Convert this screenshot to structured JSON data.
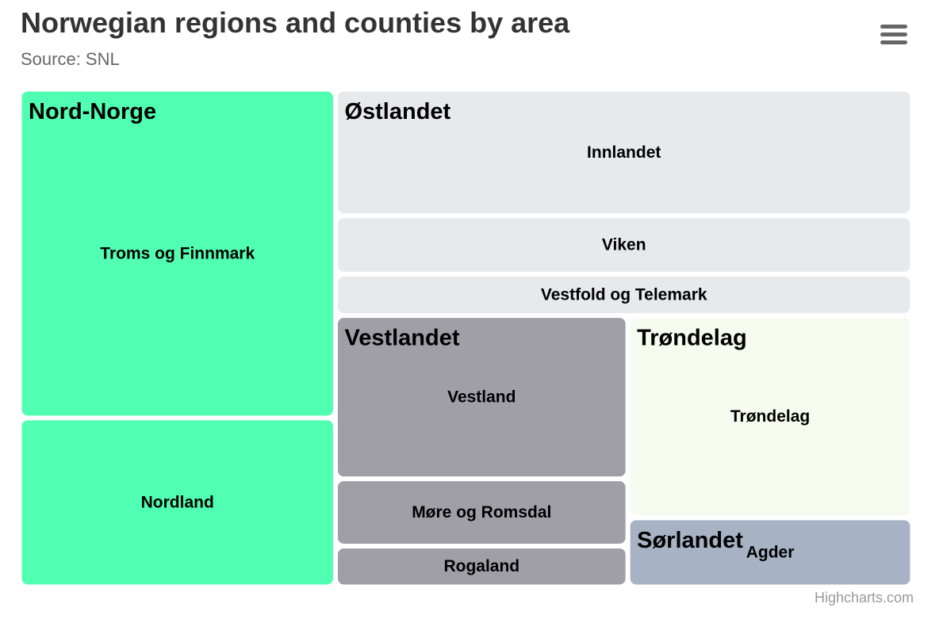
{
  "header": {
    "title": "Norwegian regions and counties by area",
    "subtitle": "Source: SNL"
  },
  "menu": {
    "icon": "hamburger-menu-icon"
  },
  "credits": {
    "label": "Highcharts.com"
  },
  "chart_data": {
    "type": "treemap",
    "title": "Norwegian regions and counties by area",
    "subtitle": "Source: SNL",
    "regions": [
      {
        "name": "Nord-Norge",
        "color": "#50FFB1",
        "counties": [
          {
            "name": "Troms og Finnmark",
            "value": 74000
          },
          {
            "name": "Nordland",
            "value": 38000
          }
        ]
      },
      {
        "name": "Østlandet",
        "color": "#E6EAED",
        "counties": [
          {
            "name": "Innlandet",
            "value": 52000
          },
          {
            "name": "Viken",
            "value": 24000
          },
          {
            "name": "Vestfold og Telemark",
            "value": 17000
          }
        ]
      },
      {
        "name": "Vestlandet",
        "color": "#A09FA8",
        "counties": [
          {
            "name": "Vestland",
            "value": 34000
          },
          {
            "name": "Møre og Romsdal",
            "value": 14000
          },
          {
            "name": "Rogaland",
            "value": 8500
          }
        ]
      },
      {
        "name": "Trøndelag",
        "color": "#F5FBEF",
        "counties": [
          {
            "name": "Trøndelag",
            "value": 41000
          }
        ]
      },
      {
        "name": "Sørlandet",
        "color": "#A7B3C4",
        "counties": [
          {
            "name": "Agder",
            "value": 14000
          }
        ]
      }
    ]
  }
}
